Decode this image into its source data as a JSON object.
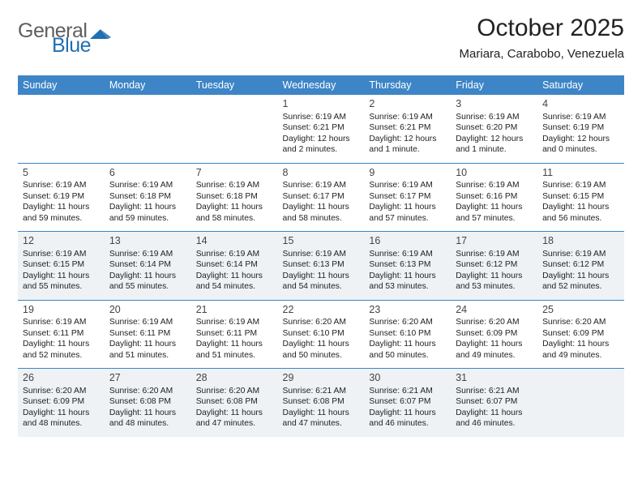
{
  "logo": {
    "general": "General",
    "blue": "Blue"
  },
  "title": {
    "month_year": "October 2025",
    "location": "Mariara, Carabobo, Venezuela"
  },
  "colors": {
    "header_bg": "#3d85c6",
    "row_alt_bg": "#eef2f5",
    "sep_line": "#3d85c6",
    "logo_mark_fill": "#1f6fb2"
  },
  "day_headers": [
    "Sunday",
    "Monday",
    "Tuesday",
    "Wednesday",
    "Thursday",
    "Friday",
    "Saturday"
  ],
  "weeks": [
    [
      {
        "n": "",
        "sr": "",
        "ss": "",
        "dl1": "",
        "dl2": ""
      },
      {
        "n": "",
        "sr": "",
        "ss": "",
        "dl1": "",
        "dl2": ""
      },
      {
        "n": "",
        "sr": "",
        "ss": "",
        "dl1": "",
        "dl2": ""
      },
      {
        "n": "1",
        "sr": "Sunrise: 6:19 AM",
        "ss": "Sunset: 6:21 PM",
        "dl1": "Daylight: 12 hours",
        "dl2": "and 2 minutes."
      },
      {
        "n": "2",
        "sr": "Sunrise: 6:19 AM",
        "ss": "Sunset: 6:21 PM",
        "dl1": "Daylight: 12 hours",
        "dl2": "and 1 minute."
      },
      {
        "n": "3",
        "sr": "Sunrise: 6:19 AM",
        "ss": "Sunset: 6:20 PM",
        "dl1": "Daylight: 12 hours",
        "dl2": "and 1 minute."
      },
      {
        "n": "4",
        "sr": "Sunrise: 6:19 AM",
        "ss": "Sunset: 6:19 PM",
        "dl1": "Daylight: 12 hours",
        "dl2": "and 0 minutes."
      }
    ],
    [
      {
        "n": "5",
        "sr": "Sunrise: 6:19 AM",
        "ss": "Sunset: 6:19 PM",
        "dl1": "Daylight: 11 hours",
        "dl2": "and 59 minutes."
      },
      {
        "n": "6",
        "sr": "Sunrise: 6:19 AM",
        "ss": "Sunset: 6:18 PM",
        "dl1": "Daylight: 11 hours",
        "dl2": "and 59 minutes."
      },
      {
        "n": "7",
        "sr": "Sunrise: 6:19 AM",
        "ss": "Sunset: 6:18 PM",
        "dl1": "Daylight: 11 hours",
        "dl2": "and 58 minutes."
      },
      {
        "n": "8",
        "sr": "Sunrise: 6:19 AM",
        "ss": "Sunset: 6:17 PM",
        "dl1": "Daylight: 11 hours",
        "dl2": "and 58 minutes."
      },
      {
        "n": "9",
        "sr": "Sunrise: 6:19 AM",
        "ss": "Sunset: 6:17 PM",
        "dl1": "Daylight: 11 hours",
        "dl2": "and 57 minutes."
      },
      {
        "n": "10",
        "sr": "Sunrise: 6:19 AM",
        "ss": "Sunset: 6:16 PM",
        "dl1": "Daylight: 11 hours",
        "dl2": "and 57 minutes."
      },
      {
        "n": "11",
        "sr": "Sunrise: 6:19 AM",
        "ss": "Sunset: 6:15 PM",
        "dl1": "Daylight: 11 hours",
        "dl2": "and 56 minutes."
      }
    ],
    [
      {
        "n": "12",
        "sr": "Sunrise: 6:19 AM",
        "ss": "Sunset: 6:15 PM",
        "dl1": "Daylight: 11 hours",
        "dl2": "and 55 minutes."
      },
      {
        "n": "13",
        "sr": "Sunrise: 6:19 AM",
        "ss": "Sunset: 6:14 PM",
        "dl1": "Daylight: 11 hours",
        "dl2": "and 55 minutes."
      },
      {
        "n": "14",
        "sr": "Sunrise: 6:19 AM",
        "ss": "Sunset: 6:14 PM",
        "dl1": "Daylight: 11 hours",
        "dl2": "and 54 minutes."
      },
      {
        "n": "15",
        "sr": "Sunrise: 6:19 AM",
        "ss": "Sunset: 6:13 PM",
        "dl1": "Daylight: 11 hours",
        "dl2": "and 54 minutes."
      },
      {
        "n": "16",
        "sr": "Sunrise: 6:19 AM",
        "ss": "Sunset: 6:13 PM",
        "dl1": "Daylight: 11 hours",
        "dl2": "and 53 minutes."
      },
      {
        "n": "17",
        "sr": "Sunrise: 6:19 AM",
        "ss": "Sunset: 6:12 PM",
        "dl1": "Daylight: 11 hours",
        "dl2": "and 53 minutes."
      },
      {
        "n": "18",
        "sr": "Sunrise: 6:19 AM",
        "ss": "Sunset: 6:12 PM",
        "dl1": "Daylight: 11 hours",
        "dl2": "and 52 minutes."
      }
    ],
    [
      {
        "n": "19",
        "sr": "Sunrise: 6:19 AM",
        "ss": "Sunset: 6:11 PM",
        "dl1": "Daylight: 11 hours",
        "dl2": "and 52 minutes."
      },
      {
        "n": "20",
        "sr": "Sunrise: 6:19 AM",
        "ss": "Sunset: 6:11 PM",
        "dl1": "Daylight: 11 hours",
        "dl2": "and 51 minutes."
      },
      {
        "n": "21",
        "sr": "Sunrise: 6:19 AM",
        "ss": "Sunset: 6:11 PM",
        "dl1": "Daylight: 11 hours",
        "dl2": "and 51 minutes."
      },
      {
        "n": "22",
        "sr": "Sunrise: 6:20 AM",
        "ss": "Sunset: 6:10 PM",
        "dl1": "Daylight: 11 hours",
        "dl2": "and 50 minutes."
      },
      {
        "n": "23",
        "sr": "Sunrise: 6:20 AM",
        "ss": "Sunset: 6:10 PM",
        "dl1": "Daylight: 11 hours",
        "dl2": "and 50 minutes."
      },
      {
        "n": "24",
        "sr": "Sunrise: 6:20 AM",
        "ss": "Sunset: 6:09 PM",
        "dl1": "Daylight: 11 hours",
        "dl2": "and 49 minutes."
      },
      {
        "n": "25",
        "sr": "Sunrise: 6:20 AM",
        "ss": "Sunset: 6:09 PM",
        "dl1": "Daylight: 11 hours",
        "dl2": "and 49 minutes."
      }
    ],
    [
      {
        "n": "26",
        "sr": "Sunrise: 6:20 AM",
        "ss": "Sunset: 6:09 PM",
        "dl1": "Daylight: 11 hours",
        "dl2": "and 48 minutes."
      },
      {
        "n": "27",
        "sr": "Sunrise: 6:20 AM",
        "ss": "Sunset: 6:08 PM",
        "dl1": "Daylight: 11 hours",
        "dl2": "and 48 minutes."
      },
      {
        "n": "28",
        "sr": "Sunrise: 6:20 AM",
        "ss": "Sunset: 6:08 PM",
        "dl1": "Daylight: 11 hours",
        "dl2": "and 47 minutes."
      },
      {
        "n": "29",
        "sr": "Sunrise: 6:21 AM",
        "ss": "Sunset: 6:08 PM",
        "dl1": "Daylight: 11 hours",
        "dl2": "and 47 minutes."
      },
      {
        "n": "30",
        "sr": "Sunrise: 6:21 AM",
        "ss": "Sunset: 6:07 PM",
        "dl1": "Daylight: 11 hours",
        "dl2": "and 46 minutes."
      },
      {
        "n": "31",
        "sr": "Sunrise: 6:21 AM",
        "ss": "Sunset: 6:07 PM",
        "dl1": "Daylight: 11 hours",
        "dl2": "and 46 minutes."
      },
      {
        "n": "",
        "sr": "",
        "ss": "",
        "dl1": "",
        "dl2": ""
      }
    ]
  ]
}
